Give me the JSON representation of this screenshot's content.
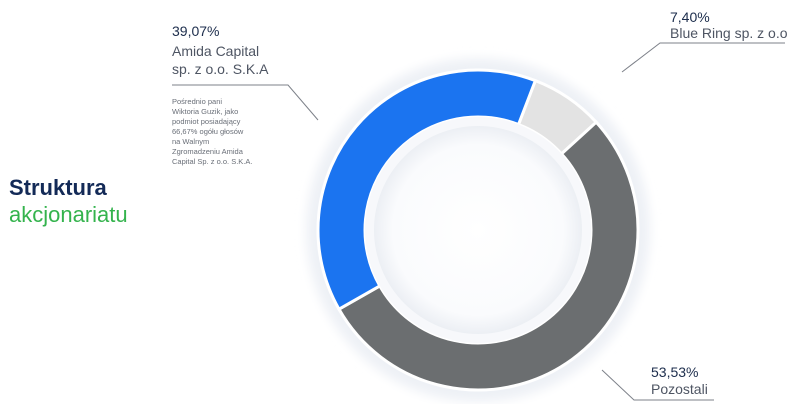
{
  "heading": {
    "line1": "Struktura",
    "line2": "akcjonariatu"
  },
  "colors": {
    "heading_dark": "#132a57",
    "heading_green": "#34b34d"
  },
  "chart_data": {
    "type": "pie",
    "title": "Struktura akcjonariatu",
    "donut": true,
    "slices": [
      {
        "name": "Amida Capital sp. z o.o. S.K.A",
        "name_lines": [
          "Amida Capital",
          "sp. z o.o. S.K.A"
        ],
        "value": 39.07,
        "label": "39,07%",
        "color": "#1b74f0",
        "note_lines": [
          "Pośrednio pani",
          "Wiktoria Guzik, jako",
          "podmiot posiadający",
          "66,67% ogółu głosów",
          "na Walnym",
          "Zgromadzeniu Amida",
          "Capital Sp. z o.o. S.K.A."
        ]
      },
      {
        "name": "Blue Ring sp. z o.o.",
        "name_lines": [
          "Blue Ring sp. z o.o."
        ],
        "value": 7.4,
        "label": "7,40%",
        "color": "#e3e3e3",
        "note_lines": []
      },
      {
        "name": "Pozostali",
        "name_lines": [
          "Pozostali"
        ],
        "value": 53.53,
        "label": "53,53%",
        "color": "#6b6e70",
        "note_lines": []
      }
    ]
  }
}
